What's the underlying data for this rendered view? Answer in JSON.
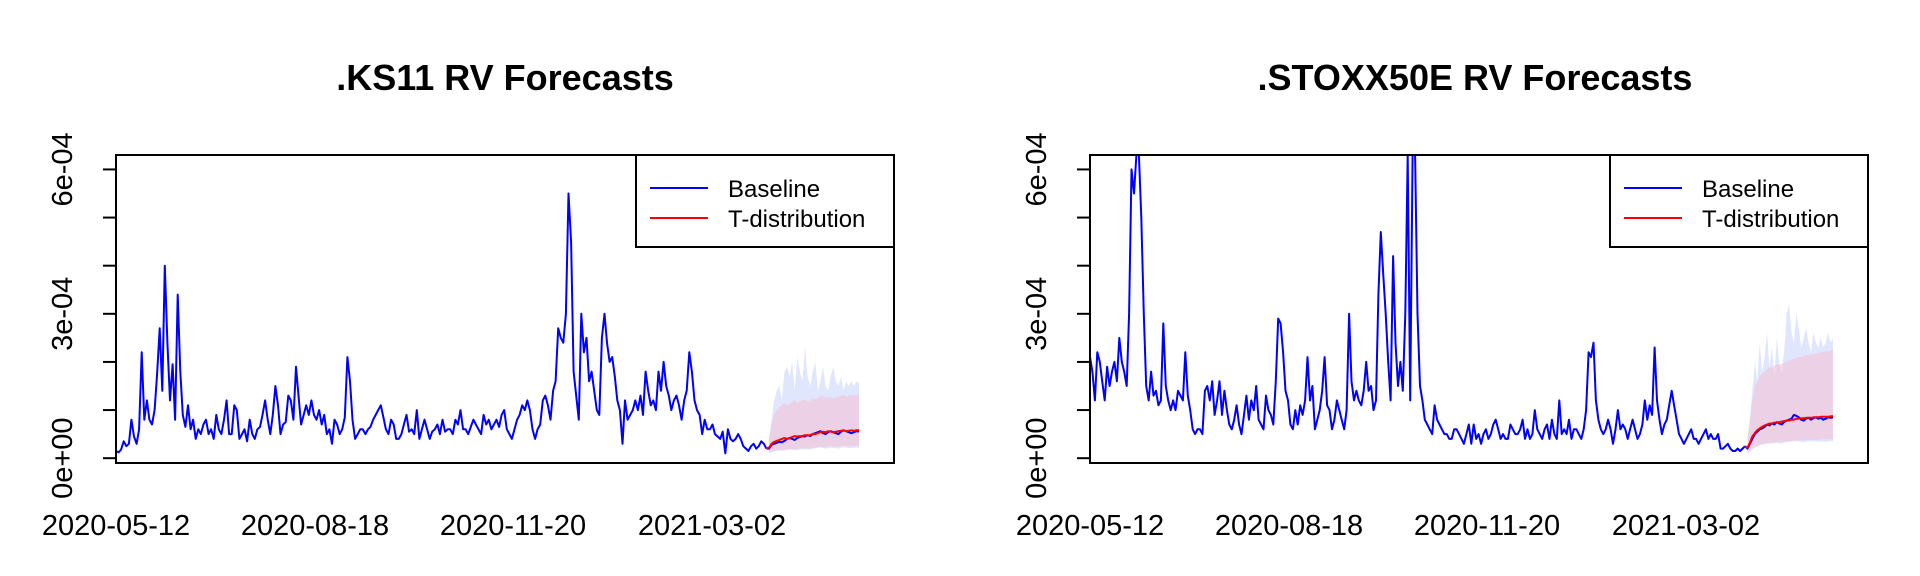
{
  "colors": {
    "baseline": "#0000ff",
    "tdist": "#ff0000",
    "band_baseline": "#c8d2ff",
    "band_tdist": "#f5bed2"
  },
  "chart_data": [
    {
      "type": "line",
      "title": ".KS11 RV Forecasts",
      "xlabel": "",
      "ylabel": "",
      "x_ticks": [
        "2020-05-12",
        "2020-08-18",
        "2020-11-20",
        "2021-03-02"
      ],
      "y_ticks": [
        "0e+00",
        "3e-04",
        "6e-04"
      ],
      "ylim": [
        -1e-05,
        0.00063
      ],
      "legend": {
        "position": "top-right",
        "entries": [
          "Baseline",
          "T-distribution"
        ]
      },
      "grid": false,
      "baseline_values": [
        1.5e-05,
        1.2e-05,
        1.8e-05,
        3.5e-05,
        2.5e-05,
        3e-05,
        8e-05,
        4.5e-05,
        3e-05,
        6e-05,
        0.00022,
        8e-05,
        0.00012,
        8e-05,
        7e-05,
        0.0001,
        0.000175,
        0.00027,
        0.00014,
        0.0004,
        0.00024,
        0.00012,
        0.000195,
        8e-05,
        0.00034,
        0.00018,
        9e-05,
        6.5e-05,
        0.00011,
        6e-05,
        8e-05,
        4e-05,
        6e-05,
        5e-05,
        7e-05,
        8e-05,
        5e-05,
        6e-05,
        4e-05,
        9e-05,
        6e-05,
        5e-05,
        8e-05,
        0.00012,
        5e-05,
        5e-05,
        0.00011,
        0.0001,
        4e-05,
        5e-05,
        6e-05,
        3.5e-05,
        8e-05,
        5e-05,
        4e-05,
        6e-05,
        6.5e-05,
        9e-05,
        0.00012,
        8e-05,
        5e-05,
        9e-05,
        0.00015,
        0.00011,
        5e-05,
        7e-05,
        7.5e-05,
        0.00013,
        0.00012,
        8e-05,
        0.00019,
        0.00013,
        7e-05,
        9e-05,
        0.00011,
        9e-05,
        0.00012,
        9e-05,
        8e-05,
        0.0001,
        7e-05,
        9e-05,
        5e-05,
        6e-05,
        3e-05,
        8e-05,
        7e-05,
        5e-05,
        6e-05,
        8.5e-05,
        0.00021,
        0.00016,
        8e-05,
        4e-05,
        5e-05,
        6e-05,
        6e-05,
        5e-05,
        6e-05,
        6.5e-05,
        8e-05,
        9e-05,
        0.0001,
        0.00011,
        8.5e-05,
        6e-05,
        5e-05,
        8e-05,
        7e-05,
        4e-05,
        4e-05,
        5e-05,
        7e-05,
        9e-05,
        5.5e-05,
        6e-05,
        5e-05,
        0.0001,
        4e-05,
        6e-05,
        8e-05,
        6e-05,
        4e-05,
        5.5e-05,
        6e-05,
        7e-05,
        5e-05,
        8e-05,
        5.5e-05,
        6e-05,
        6e-05,
        5e-05,
        8e-05,
        7e-05,
        0.0001,
        6e-05,
        6e-05,
        5e-05,
        6.5e-05,
        8e-05,
        7e-05,
        6e-05,
        5e-05,
        9e-05,
        7e-05,
        8e-05,
        6e-05,
        7e-05,
        8e-05,
        6.5e-05,
        9e-05,
        0.0001,
        6e-05,
        5e-05,
        4e-05,
        6e-05,
        8e-05,
        9e-05,
        0.00011,
        0.0001,
        0.00012,
        0.0001,
        6e-05,
        4e-05,
        6e-05,
        7e-05,
        0.00012,
        0.00013,
        0.00011,
        8e-05,
        0.00014,
        0.00016,
        0.00027,
        0.00025,
        0.00024,
        0.0003,
        0.00055,
        0.00045,
        0.00018,
        0.00013,
        8e-05,
        0.0003,
        0.00022,
        0.00025,
        0.00016,
        0.00018,
        0.00014,
        0.0001,
        9e-05,
        0.00025,
        0.0003,
        0.00024,
        0.0002,
        0.00021,
        0.00017,
        0.00012,
        0.0001,
        3e-05,
        0.00012,
        8e-05,
        9e-05,
        0.0001,
        0.00012,
        0.0001,
        0.00013,
        9e-05,
        0.00018,
        0.00014,
        0.00011,
        0.00012,
        0.0001,
        0.00018,
        0.00014,
        0.0002,
        0.00015,
        0.00013,
        0.0001,
        0.00012,
        0.00013,
        0.00011,
        8e-05,
        0.00012,
        0.00014,
        0.00022,
        0.00018,
        0.00012,
        0.0001,
        9e-05,
        5e-05,
        8e-05,
        6e-05,
        6e-05,
        7e-05,
        5e-05,
        4.5e-05,
        4e-05,
        5.5e-05,
        1e-05,
        6e-05,
        4e-05,
        3.5e-05,
        4e-05,
        5e-05,
        4e-05,
        2.5e-05,
        2e-05,
        1.5e-05,
        2.5e-05,
        3e-05,
        2e-05,
        2.5e-05,
        3.5e-05,
        3e-05,
        2e-05
      ],
      "forecast_baseline": [
        2e-05,
        2.8e-05,
        3e-05,
        3.2e-05,
        3.4e-05,
        3.3e-05,
        3.6e-05,
        4e-05,
        4.2e-05,
        4e-05,
        3.8e-05,
        4.2e-05,
        4.4e-05,
        4.6e-05,
        4.5e-05,
        4.8e-05,
        4.6e-05,
        5e-05,
        5.2e-05,
        5.4e-05,
        5.6e-05,
        5.2e-05,
        5e-05,
        5.4e-05,
        5.6e-05,
        5.4e-05,
        5.2e-05,
        5e-05,
        5.5e-05,
        5.8e-05,
        5.6e-05,
        5.4e-05,
        5.2e-05,
        5.4e-05,
        5.6e-05,
        5.5e-05
      ],
      "forecast_tdist": [
        2.2e-05,
        3e-05,
        3.4e-05,
        3.6e-05,
        3.8e-05,
        4e-05,
        4.2e-05,
        4e-05,
        4.2e-05,
        4.4e-05,
        4.6e-05,
        4.5e-05,
        4.6e-05,
        4.6e-05,
        4.8e-05,
        4.7e-05,
        4.8e-05,
        5e-05,
        5e-05,
        5.2e-05,
        5.4e-05,
        5.5e-05,
        5.4e-05,
        5.6e-05,
        5.5e-05,
        5.4e-05,
        5.5e-05,
        5.6e-05,
        5.7e-05,
        5.8e-05,
        5.6e-05,
        5.7e-05,
        5.8e-05,
        5.7e-05,
        5.8e-05,
        5.8e-05
      ],
      "band_baseline_upper": [
        4e-05,
        8e-05,
        0.00012,
        0.00014,
        0.00015,
        0.00012,
        0.00018,
        0.00019,
        0.00017,
        0.0002,
        0.00014,
        0.00021,
        0.00018,
        0.00016,
        0.00023,
        0.00017,
        0.00015,
        0.00018,
        0.0002,
        0.00014,
        0.00016,
        0.00019,
        0.00015,
        0.00014,
        0.00017,
        0.00019,
        0.00016,
        0.00015,
        0.00017,
        0.00014,
        0.00016,
        0.00015,
        0.00016,
        0.00015,
        0.00016,
        0.000155
      ],
      "band_baseline_lower": [
        1e-05,
        1.2e-05,
        1.4e-05,
        1.5e-05,
        1.6e-05,
        1.5e-05,
        1.6e-05,
        1.7e-05,
        1.8e-05,
        1.7e-05,
        1.6e-05,
        1.7e-05,
        1.8e-05,
        1.9e-05,
        1.8e-05,
        1.9e-05,
        1.8e-05,
        2e-05,
        2.1e-05,
        2.2e-05,
        2.2e-05,
        2.1e-05,
        2e-05,
        2.1e-05,
        2.2e-05,
        2.1e-05,
        2.1e-05,
        2e-05,
        2.2e-05,
        2.3e-05,
        2.2e-05,
        2.1e-05,
        2.1e-05,
        2.2e-05,
        2.2e-05,
        2.2e-05
      ],
      "band_tdist_upper": [
        4e-05,
        7e-05,
        9e-05,
        0.0001,
        0.000105,
        0.00011,
        0.000115,
        0.00011,
        0.000112,
        0.000118,
        0.00012,
        0.000115,
        0.000118,
        0.00012,
        0.000122,
        0.000118,
        0.00012,
        0.000124,
        0.000122,
        0.000125,
        0.000128,
        0.00013,
        0.000126,
        0.000128,
        0.000126,
        0.000125,
        0.000126,
        0.000128,
        0.00013,
        0.000132,
        0.000128,
        0.00013,
        0.000132,
        0.00013,
        0.000132,
        0.000132
      ],
      "band_tdist_lower": [
        1.2e-05,
        1.4e-05,
        1.5e-05,
        1.6e-05,
        1.7e-05,
        1.8e-05,
        1.8e-05,
        1.8e-05,
        1.8e-05,
        1.9e-05,
        2e-05,
        1.9e-05,
        2e-05,
        2e-05,
        2.1e-05,
        2e-05,
        2.1e-05,
        2.2e-05,
        2.2e-05,
        2.3e-05,
        2.4e-05,
        2.4e-05,
        2.4e-05,
        2.5e-05,
        2.4e-05,
        2.4e-05,
        2.4e-05,
        2.5e-05,
        2.5e-05,
        2.6e-05,
        2.5e-05,
        2.5e-05,
        2.6e-05,
        2.5e-05,
        2.6e-05,
        2.6e-05
      ]
    },
    {
      "type": "line",
      "title": ".STOXX50E RV Forecasts",
      "xlabel": "",
      "ylabel": "",
      "x_ticks": [
        "2020-05-12",
        "2020-08-18",
        "2020-11-20",
        "2021-03-02"
      ],
      "y_ticks": [
        "0e+00",
        "3e-04",
        "6e-04"
      ],
      "ylim": [
        -1e-05,
        0.00063
      ],
      "legend": {
        "position": "top-right",
        "entries": [
          "Baseline",
          "T-distribution"
        ]
      },
      "grid": false,
      "baseline_values": [
        0.00021,
        0.00018,
        0.00012,
        0.00022,
        0.0002,
        0.00016,
        0.00012,
        0.00019,
        0.00015,
        0.00018,
        0.0002,
        0.00016,
        0.00025,
        0.0002,
        0.00018,
        0.00015,
        0.0003,
        0.0006,
        0.00055,
        0.00063,
        0.00063,
        0.0005,
        0.0003,
        0.00015,
        0.00012,
        0.00018,
        0.00013,
        0.00014,
        0.00011,
        0.00012,
        0.00028,
        0.00015,
        0.00012,
        0.0001,
        0.00012,
        0.0001,
        0.00014,
        0.00013,
        0.00012,
        0.00022,
        0.00013,
        0.0001,
        6e-05,
        5e-05,
        6e-05,
        6e-05,
        5e-05,
        0.00014,
        0.00015,
        0.00012,
        0.00016,
        9e-05,
        0.00012,
        0.00016,
        9e-05,
        0.00014,
        0.0001,
        7e-05,
        6e-05,
        8e-05,
        0.00011,
        7e-05,
        5e-05,
        9e-05,
        0.00013,
        8e-05,
        0.00012,
        0.0001,
        0.00015,
        8e-05,
        7e-05,
        6e-05,
        0.00013,
        0.0001,
        9e-05,
        7e-05,
        0.00016,
        0.00029,
        0.00028,
        0.00022,
        0.00014,
        0.00012,
        7e-05,
        6e-05,
        0.0001,
        7e-05,
        0.00011,
        9e-05,
        0.00012,
        0.00021,
        0.00012,
        0.00015,
        6e-05,
        8e-05,
        0.0001,
        0.00014,
        0.00021,
        0.00011,
        0.0001,
        6e-05,
        8e-05,
        0.00012,
        0.0001,
        8e-05,
        6e-05,
        0.0001,
        0.0003,
        0.00016,
        0.00012,
        0.00014,
        0.00012,
        0.00011,
        0.00014,
        0.0002,
        0.00014,
        0.00015,
        0.0001,
        0.00012,
        0.00034,
        0.00047,
        0.00038,
        0.0003,
        0.0002,
        0.00012,
        0.00042,
        0.00024,
        0.00015,
        0.0002,
        0.00014,
        0.0003,
        0.00063,
        0.00012,
        0.00063,
        0.00063,
        0.0003,
        0.00015,
        0.00012,
        8e-05,
        7e-05,
        6e-05,
        5e-05,
        0.00011,
        8e-05,
        7e-05,
        6e-05,
        5e-05,
        5e-05,
        4e-05,
        4e-05,
        6e-05,
        6e-05,
        5e-05,
        4e-05,
        3e-05,
        5e-05,
        7e-05,
        3e-05,
        7e-05,
        4e-05,
        5e-05,
        3e-05,
        5e-05,
        6e-05,
        4e-05,
        5e-05,
        7e-05,
        8e-05,
        6e-05,
        4e-05,
        5e-05,
        4e-05,
        4e-05,
        7e-05,
        6e-05,
        5e-05,
        5e-05,
        6e-05,
        8e-05,
        4e-05,
        6e-05,
        4e-05,
        5e-05,
        0.0001,
        6e-05,
        5e-05,
        4e-05,
        6e-05,
        7e-05,
        4e-05,
        8e-05,
        5e-05,
        4e-05,
        0.00012,
        5e-05,
        6e-05,
        5e-05,
        8e-05,
        4e-05,
        6e-05,
        6e-05,
        5e-05,
        4e-05,
        6e-05,
        0.0001,
        0.00022,
        0.00021,
        0.00024,
        0.00012,
        8e-05,
        6e-05,
        5e-05,
        6e-05,
        8e-05,
        6e-05,
        3e-05,
        6e-05,
        0.0001,
        6e-05,
        7e-05,
        6e-05,
        4e-05,
        6e-05,
        8e-05,
        6e-05,
        4e-05,
        5e-05,
        7e-05,
        0.00012,
        8e-05,
        0.00011,
        9e-05,
        0.00023,
        0.00012,
        8e-05,
        5e-05,
        7e-05,
        8e-05,
        0.00011,
        0.00014,
        0.00011,
        8e-05,
        5e-05,
        4e-05,
        3e-05,
        4e-05,
        5e-05,
        6e-05,
        4e-05,
        4e-05,
        3e-05,
        4e-05,
        5e-05,
        6e-05,
        4e-05,
        5e-05,
        4e-05,
        4e-05,
        5e-05,
        2e-05,
        2e-05,
        2.5e-05,
        3e-05,
        2e-05,
        1.5e-05,
        1.5e-05,
        2e-05,
        1.5e-05,
        2e-05,
        2.5e-05
      ],
      "forecast_baseline": [
        2e-05,
        3e-05,
        4e-05,
        5e-05,
        5.5e-05,
        6e-05,
        6.2e-05,
        6.5e-05,
        7e-05,
        6.8e-05,
        7.2e-05,
        7e-05,
        7.5e-05,
        7.2e-05,
        7e-05,
        7.5e-05,
        7.8e-05,
        8e-05,
        8.2e-05,
        9e-05,
        8.8e-05,
        8.5e-05,
        8e-05,
        7.8e-05,
        8.2e-05,
        8.4e-05,
        8e-05,
        8.3e-05,
        8.5e-05,
        8.2e-05,
        8.4e-05,
        8e-05,
        8.2e-05,
        8.5e-05,
        8.4e-05,
        8.5e-05
      ],
      "forecast_tdist": [
        2.2e-05,
        3.2e-05,
        4.5e-05,
        5.2e-05,
        5.8e-05,
        6.2e-05,
        6.5e-05,
        6.8e-05,
        7e-05,
        7.2e-05,
        7.2e-05,
        7.4e-05,
        7.4e-05,
        7.5e-05,
        7.6e-05,
        7.7e-05,
        7.8e-05,
        7.8e-05,
        8e-05,
        8e-05,
        8.2e-05,
        8.2e-05,
        8.3e-05,
        8.3e-05,
        8.4e-05,
        8.4e-05,
        8.4e-05,
        8.5e-05,
        8.5e-05,
        8.5e-05,
        8.6e-05,
        8.6e-05,
        8.6e-05,
        8.6e-05,
        8.7e-05,
        8.7e-05
      ],
      "band_baseline_upper": [
        4e-05,
        8e-05,
        0.00014,
        0.0002,
        0.00016,
        0.00024,
        0.00018,
        0.00021,
        0.00026,
        0.00019,
        0.00023,
        0.00017,
        0.00025,
        0.0002,
        0.00018,
        0.00022,
        0.0003,
        0.00032,
        0.00026,
        0.00024,
        0.0003,
        0.00027,
        0.00023,
        0.00025,
        0.00027,
        0.00024,
        0.00022,
        0.00026,
        0.00024,
        0.00023,
        0.00025,
        0.00023,
        0.00024,
        0.00026,
        0.00024,
        0.00025
      ],
      "band_baseline_lower": [
        1e-05,
        1.4e-05,
        1.8e-05,
        2.2e-05,
        2.5e-05,
        2.7e-05,
        2.8e-05,
        2.9e-05,
        3e-05,
        3e-05,
        3.1e-05,
        3e-05,
        3.2e-05,
        3.1e-05,
        3e-05,
        3.2e-05,
        3.3e-05,
        3.4e-05,
        3.4e-05,
        3.6e-05,
        3.5e-05,
        3.5e-05,
        3.4e-05,
        3.3e-05,
        3.4e-05,
        3.5e-05,
        3.4e-05,
        3.5e-05,
        3.5e-05,
        3.4e-05,
        3.5e-05,
        3.4e-05,
        3.4e-05,
        3.5e-05,
        3.5e-05,
        3.5e-05
      ],
      "band_tdist_upper": [
        4e-05,
        8e-05,
        0.00012,
        0.00015,
        0.00016,
        0.00017,
        0.000175,
        0.00018,
        0.000185,
        0.00019,
        0.000188,
        0.000192,
        0.000195,
        0.000194,
        0.000196,
        0.000198,
        0.0002,
        0.000202,
        0.000205,
        0.000206,
        0.000208,
        0.00021,
        0.00021,
        0.000212,
        0.000214,
        0.000215,
        0.000215,
        0.000216,
        0.000218,
        0.000218,
        0.00022,
        0.00022,
        0.000222,
        0.000222,
        0.000224,
        0.000225
      ],
      "band_tdist_lower": [
        1e-05,
        1.5e-05,
        2e-05,
        2.4e-05,
        2.6e-05,
        2.8e-05,
        2.9e-05,
        3e-05,
        3.1e-05,
        3.2e-05,
        3.2e-05,
        3.3e-05,
        3.3e-05,
        3.4e-05,
        3.4e-05,
        3.4e-05,
        3.5e-05,
        3.5e-05,
        3.6e-05,
        3.6e-05,
        3.7e-05,
        3.7e-05,
        3.7e-05,
        3.7e-05,
        3.8e-05,
        3.8e-05,
        3.8e-05,
        3.8e-05,
        3.8e-05,
        3.8e-05,
        3.9e-05,
        3.9e-05,
        3.9e-05,
        3.9e-05,
        3.9e-05,
        3.9e-05
      ]
    }
  ]
}
